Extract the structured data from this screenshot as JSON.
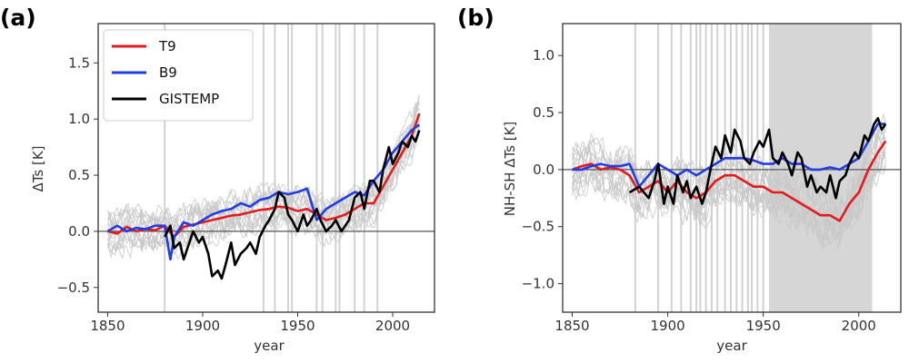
{
  "figure": {
    "panels": [
      {
        "letter": "(a)",
        "xlabel": "year",
        "ylabel": "ΔTs [K]"
      },
      {
        "letter": "(b)",
        "xlabel": "year",
        "ylabel": "NH-SH ΔTs [K]"
      }
    ],
    "legend": [
      "T9",
      "B9",
      "GISTEMP"
    ]
  },
  "chart_data": [
    {
      "panel": "(a)",
      "type": "line",
      "title": "",
      "xlabel": "year",
      "ylabel": "ΔTs [K]",
      "xlim": [
        1845,
        2022
      ],
      "ylim": [
        -0.72,
        1.85
      ],
      "xticks": [
        1850,
        1900,
        1950,
        2000
      ],
      "yticks": [
        -0.5,
        0.0,
        0.5,
        1.0,
        1.5
      ],
      "xtick_labels": [
        "1850",
        "1900",
        "1950",
        "2000"
      ],
      "ytick_labels": [
        "−0.5",
        "0.0",
        "0.5",
        "1.0",
        "1.5"
      ],
      "legend_position": "upper-left",
      "zero_line": true,
      "volcano_lines": [
        1880,
        1932,
        1938,
        1945,
        1947,
        1960,
        1963,
        1970,
        1972,
        1980,
        1985,
        1992
      ],
      "ensemble": {
        "color": "#c8c8c8",
        "members": 16,
        "base": "T9",
        "spread": 0.12
      },
      "series": [
        {
          "name": "T9",
          "color": "#e41a1c",
          "x": [
            1850,
            1855,
            1860,
            1865,
            1870,
            1875,
            1880,
            1885,
            1890,
            1895,
            1900,
            1905,
            1910,
            1915,
            1920,
            1925,
            1930,
            1935,
            1940,
            1945,
            1950,
            1955,
            1960,
            1965,
            1970,
            1975,
            1980,
            1985,
            1990,
            1995,
            2000,
            2005,
            2010,
            2014
          ],
          "y": [
            0.0,
            -0.02,
            0.04,
            0.0,
            0.02,
            0.01,
            0.05,
            -0.05,
            0.04,
            0.06,
            0.08,
            0.1,
            0.12,
            0.14,
            0.15,
            0.17,
            0.19,
            0.2,
            0.22,
            0.21,
            0.18,
            0.2,
            0.15,
            0.1,
            0.12,
            0.15,
            0.2,
            0.25,
            0.25,
            0.4,
            0.55,
            0.7,
            0.85,
            1.05
          ]
        },
        {
          "name": "B9",
          "color": "#1f3ce6",
          "x": [
            1850,
            1855,
            1860,
            1865,
            1870,
            1875,
            1880,
            1883,
            1885,
            1890,
            1895,
            1900,
            1905,
            1910,
            1915,
            1920,
            1925,
            1930,
            1935,
            1940,
            1945,
            1950,
            1955,
            1960,
            1965,
            1970,
            1975,
            1980,
            1985,
            1990,
            1995,
            2000,
            2005,
            2010,
            2014
          ],
          "y": [
            0.0,
            0.05,
            0.0,
            0.03,
            0.02,
            0.05,
            0.05,
            -0.25,
            -0.05,
            0.08,
            0.05,
            0.1,
            0.15,
            0.18,
            0.2,
            0.25,
            0.22,
            0.28,
            0.3,
            0.35,
            0.33,
            0.35,
            0.38,
            0.1,
            0.2,
            0.25,
            0.3,
            0.35,
            0.32,
            0.45,
            0.55,
            0.7,
            0.8,
            0.9,
            0.95
          ]
        },
        {
          "name": "GISTEMP",
          "color": "#000000",
          "x": [
            1880,
            1883,
            1885,
            1888,
            1890,
            1893,
            1895,
            1898,
            1900,
            1903,
            1905,
            1908,
            1910,
            1912,
            1915,
            1917,
            1920,
            1923,
            1925,
            1928,
            1930,
            1933,
            1935,
            1938,
            1940,
            1943,
            1945,
            1947,
            1950,
            1953,
            1955,
            1957,
            1960,
            1962,
            1965,
            1968,
            1970,
            1973,
            1975,
            1977,
            1980,
            1983,
            1985,
            1988,
            1990,
            1993,
            1995,
            1998,
            2000,
            2003,
            2005,
            2008,
            2010,
            2012,
            2014
          ],
          "y": [
            -0.05,
            0.05,
            -0.15,
            -0.1,
            -0.25,
            -0.1,
            0.0,
            -0.1,
            -0.05,
            -0.2,
            -0.4,
            -0.35,
            -0.42,
            -0.3,
            -0.1,
            -0.3,
            -0.2,
            -0.15,
            -0.1,
            -0.2,
            -0.05,
            0.05,
            0.1,
            0.2,
            0.35,
            0.3,
            0.15,
            0.1,
            0.0,
            0.15,
            0.05,
            0.1,
            0.2,
            0.1,
            0.0,
            0.05,
            0.1,
            0.0,
            0.05,
            0.1,
            0.3,
            0.35,
            0.2,
            0.45,
            0.45,
            0.35,
            0.55,
            0.75,
            0.6,
            0.7,
            0.8,
            0.75,
            0.85,
            0.8,
            0.9
          ]
        }
      ]
    },
    {
      "panel": "(b)",
      "type": "line",
      "title": "",
      "xlabel": "year",
      "ylabel": "NH-SH ΔTs [K]",
      "xlim": [
        1845,
        2022
      ],
      "ylim": [
        -1.25,
        1.28
      ],
      "xticks": [
        1850,
        1900,
        1950,
        2000
      ],
      "yticks": [
        -1.0,
        -0.5,
        0.0,
        0.5,
        1.0
      ],
      "xtick_labels": [
        "1850",
        "1900",
        "1950",
        "2000"
      ],
      "ytick_labels": [
        "−1.0",
        "−0.5",
        "0.0",
        "0.5",
        "1.0"
      ],
      "zero_line": true,
      "shaded_span": [
        1953,
        2007
      ],
      "volcano_lines": [
        1883,
        1895,
        1902,
        1907,
        1912,
        1915,
        1917,
        1920,
        1923,
        1926,
        1930,
        1933,
        1936,
        1939,
        1942,
        1944,
        1947,
        1950
      ],
      "ensemble": {
        "color": "#c8c8c8",
        "members": 16,
        "base": "T9",
        "spread": 0.15
      },
      "series": [
        {
          "name": "T9",
          "color": "#e41a1c",
          "x": [
            1850,
            1855,
            1860,
            1865,
            1870,
            1875,
            1880,
            1885,
            1890,
            1895,
            1900,
            1905,
            1910,
            1915,
            1920,
            1925,
            1930,
            1935,
            1940,
            1945,
            1950,
            1955,
            1960,
            1965,
            1970,
            1975,
            1980,
            1985,
            1990,
            1995,
            2000,
            2005,
            2010,
            2014
          ],
          "y": [
            0.0,
            0.03,
            0.05,
            0.0,
            0.02,
            0.0,
            -0.05,
            -0.2,
            -0.15,
            -0.1,
            -0.2,
            -0.1,
            -0.2,
            -0.25,
            -0.2,
            -0.1,
            -0.05,
            -0.05,
            -0.1,
            -0.15,
            -0.15,
            -0.2,
            -0.2,
            -0.25,
            -0.3,
            -0.35,
            -0.4,
            -0.4,
            -0.45,
            -0.3,
            -0.2,
            0.0,
            0.15,
            0.25
          ]
        },
        {
          "name": "B9",
          "color": "#1f3ce6",
          "x": [
            1850,
            1855,
            1860,
            1865,
            1870,
            1875,
            1880,
            1885,
            1890,
            1895,
            1900,
            1905,
            1910,
            1915,
            1920,
            1925,
            1930,
            1935,
            1940,
            1945,
            1950,
            1955,
            1960,
            1965,
            1970,
            1975,
            1980,
            1985,
            1990,
            1995,
            2000,
            2005,
            2010,
            2014
          ],
          "y": [
            0.0,
            0.0,
            0.03,
            0.05,
            0.03,
            0.03,
            0.05,
            -0.15,
            -0.05,
            0.05,
            0.0,
            -0.05,
            0.0,
            -0.05,
            0.0,
            0.05,
            0.1,
            0.1,
            0.1,
            0.08,
            0.05,
            0.05,
            0.1,
            0.05,
            0.05,
            0.0,
            0.0,
            0.02,
            0.0,
            0.05,
            0.1,
            0.25,
            0.4,
            0.4
          ]
        },
        {
          "name": "GISTEMP",
          "color": "#000000",
          "x": [
            1880,
            1885,
            1890,
            1893,
            1895,
            1898,
            1900,
            1903,
            1905,
            1908,
            1910,
            1912,
            1915,
            1918,
            1920,
            1923,
            1925,
            1928,
            1930,
            1933,
            1935,
            1938,
            1940,
            1943,
            1945,
            1948,
            1950,
            1953,
            1955,
            1958,
            1960,
            1963,
            1965,
            1968,
            1970,
            1973,
            1975,
            1978,
            1980,
            1983,
            1985,
            1988,
            1990,
            1993,
            1995,
            1998,
            2000,
            2003,
            2005,
            2008,
            2010,
            2012,
            2014
          ],
          "y": [
            -0.2,
            -0.15,
            -0.25,
            -0.1,
            0.05,
            -0.3,
            -0.15,
            -0.3,
            -0.05,
            -0.2,
            -0.1,
            -0.25,
            -0.15,
            -0.3,
            -0.2,
            0.05,
            0.2,
            0.1,
            0.3,
            0.15,
            0.35,
            0.25,
            0.1,
            0.05,
            0.15,
            0.25,
            0.2,
            0.35,
            0.1,
            0.05,
            0.15,
            0.05,
            -0.05,
            0.15,
            0.1,
            -0.15,
            -0.05,
            -0.2,
            -0.15,
            -0.2,
            -0.05,
            -0.25,
            -0.1,
            -0.05,
            0.05,
            0.15,
            0.1,
            0.3,
            0.25,
            0.4,
            0.45,
            0.35,
            0.4
          ]
        }
      ]
    }
  ]
}
